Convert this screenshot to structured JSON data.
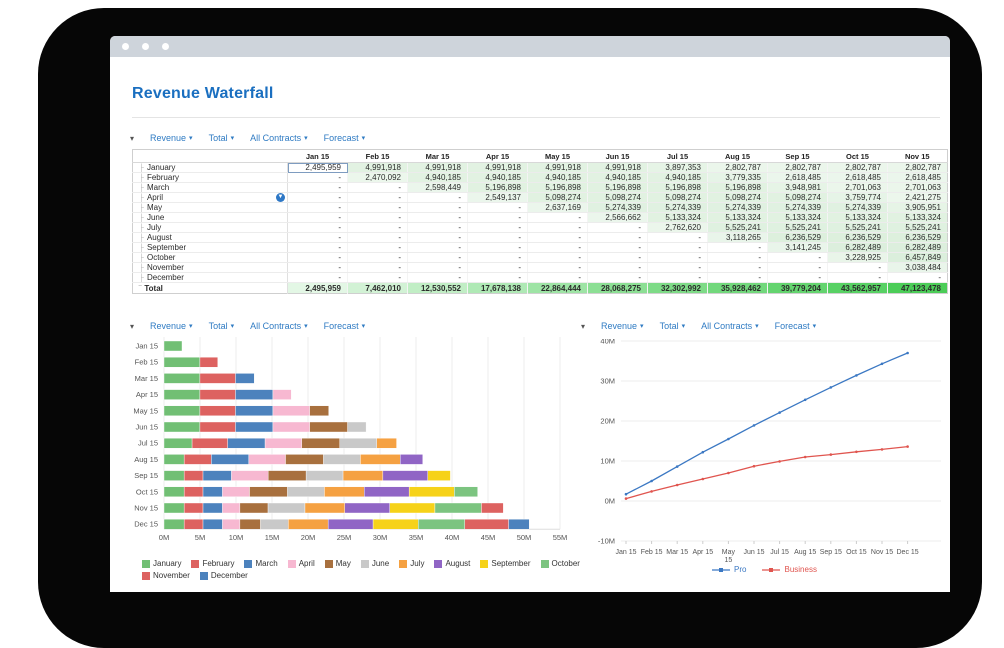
{
  "page_title": "Revenue Waterfall",
  "icons": {
    "caret_down": "▾",
    "tree_branch": "├",
    "total_branch": "‾",
    "filter_caret": "▼"
  },
  "toolbar": {
    "items": [
      "Revenue",
      "Total",
      "All Contracts",
      "Forecast"
    ]
  },
  "table": {
    "columns": [
      "Jan 15",
      "Feb 15",
      "Mar 15",
      "Apr 15",
      "May 15",
      "Jun 15",
      "Jul 15",
      "Aug 15",
      "Sep 15",
      "Oct 15",
      "Nov 15"
    ],
    "rows": [
      {
        "label": "January",
        "values": [
          "2,495,959",
          "4,991,918",
          "4,991,918",
          "4,991,918",
          "4,991,918",
          "4,991,918",
          "3,897,353",
          "2,802,787",
          "2,802,787",
          "2,802,787",
          "2,802,787"
        ]
      },
      {
        "label": "February",
        "values": [
          "-",
          "2,470,092",
          "4,940,185",
          "4,940,185",
          "4,940,185",
          "4,940,185",
          "4,940,185",
          "3,779,335",
          "2,618,485",
          "2,618,485",
          "2,618,485"
        ]
      },
      {
        "label": "March",
        "values": [
          "-",
          "-",
          "2,598,449",
          "5,196,898",
          "5,196,898",
          "5,196,898",
          "5,196,898",
          "5,196,898",
          "3,948,981",
          "2,701,063",
          "2,701,063"
        ]
      },
      {
        "label": "April",
        "has_filter_icon": true,
        "values": [
          "-",
          "-",
          "-",
          "2,549,137",
          "5,098,274",
          "5,098,274",
          "5,098,274",
          "5,098,274",
          "5,098,274",
          "3,759,774",
          "2,421,275"
        ]
      },
      {
        "label": "May",
        "values": [
          "-",
          "-",
          "-",
          "-",
          "2,637,169",
          "5,274,339",
          "5,274,339",
          "5,274,339",
          "5,274,339",
          "5,274,339",
          "3,905,951"
        ]
      },
      {
        "label": "June",
        "values": [
          "-",
          "-",
          "-",
          "-",
          "-",
          "2,566,662",
          "5,133,324",
          "5,133,324",
          "5,133,324",
          "5,133,324",
          "5,133,324"
        ]
      },
      {
        "label": "July",
        "values": [
          "-",
          "-",
          "-",
          "-",
          "-",
          "-",
          "2,762,620",
          "5,525,241",
          "5,525,241",
          "5,525,241",
          "5,525,241"
        ]
      },
      {
        "label": "August",
        "values": [
          "-",
          "-",
          "-",
          "-",
          "-",
          "-",
          "-",
          "3,118,265",
          "6,236,529",
          "6,236,529",
          "6,236,529"
        ]
      },
      {
        "label": "September",
        "values": [
          "-",
          "-",
          "-",
          "-",
          "-",
          "-",
          "-",
          "-",
          "3,141,245",
          "6,282,489",
          "6,282,489"
        ]
      },
      {
        "label": "October",
        "values": [
          "-",
          "-",
          "-",
          "-",
          "-",
          "-",
          "-",
          "-",
          "-",
          "3,228,925",
          "6,457,849"
        ]
      },
      {
        "label": "November",
        "values": [
          "-",
          "-",
          "-",
          "-",
          "-",
          "-",
          "-",
          "-",
          "-",
          "-",
          "3,038,484"
        ]
      },
      {
        "label": "December",
        "values": [
          "-",
          "-",
          "-",
          "-",
          "-",
          "-",
          "-",
          "-",
          "-",
          "-",
          "-"
        ]
      }
    ],
    "total": {
      "label": "Total",
      "values": [
        "2,495,959",
        "7,462,010",
        "12,530,552",
        "17,678,138",
        "22,864,444",
        "28,068,275",
        "32,302,992",
        "35,928,462",
        "39,779,204",
        "43,562,957",
        "47,123,478"
      ]
    },
    "selected_cell": {
      "row": 0,
      "col": 0
    }
  },
  "chart_data": [
    {
      "type": "bar",
      "orientation": "horizontal",
      "stacked": true,
      "categories": [
        "Jan 15",
        "Feb 15",
        "Mar 15",
        "Apr 15",
        "May 15",
        "Jun 15",
        "Jul 15",
        "Aug 15",
        "Sep 15",
        "Oct 15",
        "Nov 15",
        "Dec 15"
      ],
      "xlim": [
        0,
        55
      ],
      "xticks": [
        "0M",
        "5M",
        "10M",
        "15M",
        "20M",
        "25M",
        "30M",
        "35M",
        "40M",
        "45M",
        "50M",
        "55M"
      ],
      "unit": "millions",
      "legend_position": "bottom",
      "series": [
        {
          "name": "January",
          "color": "#71bf74",
          "values": [
            2.5,
            4.99,
            4.99,
            4.99,
            4.99,
            4.99,
            3.9,
            2.8,
            2.8,
            2.8,
            2.8,
            2.8
          ]
        },
        {
          "name": "February",
          "color": "#dd6260",
          "values": [
            0,
            2.47,
            4.94,
            4.94,
            4.94,
            4.94,
            4.94,
            3.78,
            2.62,
            2.62,
            2.62,
            2.62
          ]
        },
        {
          "name": "March",
          "color": "#4c82bd",
          "values": [
            0,
            0,
            2.6,
            5.2,
            5.2,
            5.2,
            5.2,
            5.2,
            3.95,
            2.7,
            2.7,
            2.7
          ]
        },
        {
          "name": "April",
          "color": "#f7b8d1",
          "values": [
            0,
            0,
            0,
            2.55,
            5.1,
            5.1,
            5.1,
            5.1,
            5.1,
            3.76,
            2.42,
            2.42
          ]
        },
        {
          "name": "May",
          "color": "#a8703e",
          "values": [
            0,
            0,
            0,
            0,
            2.64,
            5.27,
            5.27,
            5.27,
            5.27,
            5.27,
            3.91,
            2.86
          ]
        },
        {
          "name": "June",
          "color": "#c9c9c9",
          "values": [
            0,
            0,
            0,
            0,
            0,
            2.57,
            5.13,
            5.13,
            5.13,
            5.13,
            5.13,
            3.87
          ]
        },
        {
          "name": "July",
          "color": "#f5a142",
          "values": [
            0,
            0,
            0,
            0,
            0,
            0,
            2.76,
            5.53,
            5.53,
            5.53,
            5.53,
            5.53
          ]
        },
        {
          "name": "August",
          "color": "#9065c5",
          "values": [
            0,
            0,
            0,
            0,
            0,
            0,
            0,
            3.12,
            6.24,
            6.24,
            6.24,
            6.24
          ]
        },
        {
          "name": "September",
          "color": "#f6d219",
          "values": [
            0,
            0,
            0,
            0,
            0,
            0,
            0,
            0,
            3.14,
            6.28,
            6.28,
            6.28
          ]
        },
        {
          "name": "October",
          "color": "#7cc480",
          "values": [
            0,
            0,
            0,
            0,
            0,
            0,
            0,
            0,
            0,
            3.23,
            6.46,
            6.46
          ]
        },
        {
          "name": "November",
          "color": "#dd6260",
          "values": [
            0,
            0,
            0,
            0,
            0,
            0,
            0,
            0,
            0,
            0,
            3.04,
            6.08
          ]
        },
        {
          "name": "December",
          "color": "#4c82bd",
          "values": [
            0,
            0,
            0,
            0,
            0,
            0,
            0,
            0,
            0,
            0,
            0,
            2.87
          ]
        }
      ]
    },
    {
      "type": "line",
      "x_labels": [
        "Jan 15",
        "Feb 15",
        "Mar 15",
        "Apr 15",
        "May\n15",
        "Jun 15",
        "Jul 15",
        "Aug 15",
        "Sep 15",
        "Oct 15",
        "Nov 15",
        "Dec 15"
      ],
      "ylim": [
        -10,
        40
      ],
      "yticks": [
        40,
        30,
        20,
        10,
        0,
        -10
      ],
      "ytick_labels": [
        "40M",
        "30M",
        "20M",
        "10M",
        "0M",
        "-10M"
      ],
      "unit": "millions",
      "legend_position": "bottom",
      "series": [
        {
          "name": "Pro",
          "color": "#3b78c3",
          "values": [
            1.7,
            5.0,
            8.6,
            12.2,
            15.5,
            18.9,
            22.1,
            25.3,
            28.4,
            31.4,
            34.3,
            37.0
          ]
        },
        {
          "name": "Business",
          "color": "#e0554f",
          "values": [
            0.6,
            2.4,
            4.0,
            5.5,
            7.0,
            8.7,
            9.9,
            11.0,
            11.6,
            12.3,
            12.9,
            13.6
          ]
        }
      ]
    }
  ]
}
